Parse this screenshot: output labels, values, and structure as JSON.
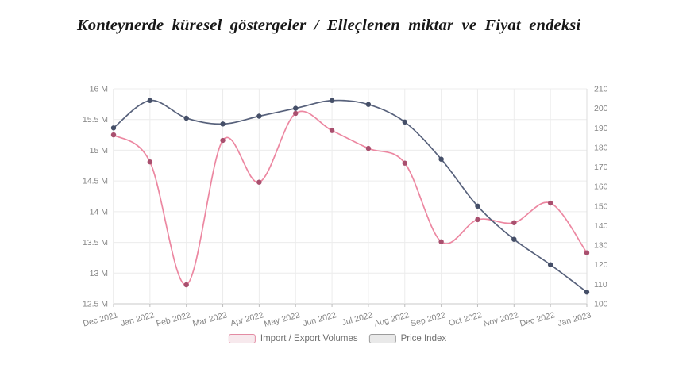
{
  "title": "Konteynerde küresel göstergeler / Elleçlenen miktar ve Fiyat endeksi",
  "colors": {
    "background": "#ffffff",
    "title_text": "#171717",
    "axis_text": "#858585",
    "gridline": "#ececec",
    "axis_line": "#c9c9c9",
    "side_line": "#dedede",
    "tick_mark": "#bdbdbd"
  },
  "chart_data": {
    "type": "line",
    "categories": [
      "Dec 2021",
      "Jan 2022",
      "Feb 2022",
      "Mar 2022",
      "Apr 2022",
      "May 2022",
      "Jun 2022",
      "Jul 2022",
      "Aug 2022",
      "Sep 2022",
      "Oct 2022",
      "Nov 2022",
      "Dec 2022",
      "Jan 2023"
    ],
    "series": [
      {
        "name": "Import / Export Volumes",
        "axis": "left",
        "unit": "M",
        "values": [
          15.25,
          14.81,
          12.81,
          15.16,
          14.48,
          15.6,
          15.32,
          15.03,
          14.79,
          13.51,
          13.87,
          13.82,
          14.14,
          13.33
        ],
        "line_color": "#ec87a1",
        "marker_color": "#a94f6e",
        "legend_fill": "#f7e9ed",
        "legend_border": "#e38ba3"
      },
      {
        "name": "Price Index",
        "axis": "right",
        "unit": "",
        "values": [
          190,
          204,
          195,
          192,
          196,
          200,
          204,
          202,
          193,
          174,
          150,
          133,
          120,
          106
        ],
        "line_color": "#57617b",
        "marker_color": "#454f68",
        "legend_fill": "#e9e9e9",
        "legend_border": "#9c9c9c"
      }
    ],
    "left_axis": {
      "min": 12.5,
      "max": 16,
      "tick_labels": [
        "16 M",
        "15.5 M",
        "15 M",
        "14.5 M",
        "14 M",
        "13.5 M",
        "13 M",
        "12.5 M"
      ]
    },
    "right_axis": {
      "min": 100,
      "max": 210,
      "tick_labels": [
        "210",
        "200",
        "190",
        "180",
        "170",
        "160",
        "150",
        "140",
        "130",
        "120",
        "110",
        "100"
      ]
    },
    "grid": true,
    "legend_position": "bottom",
    "curve": "smooth"
  }
}
